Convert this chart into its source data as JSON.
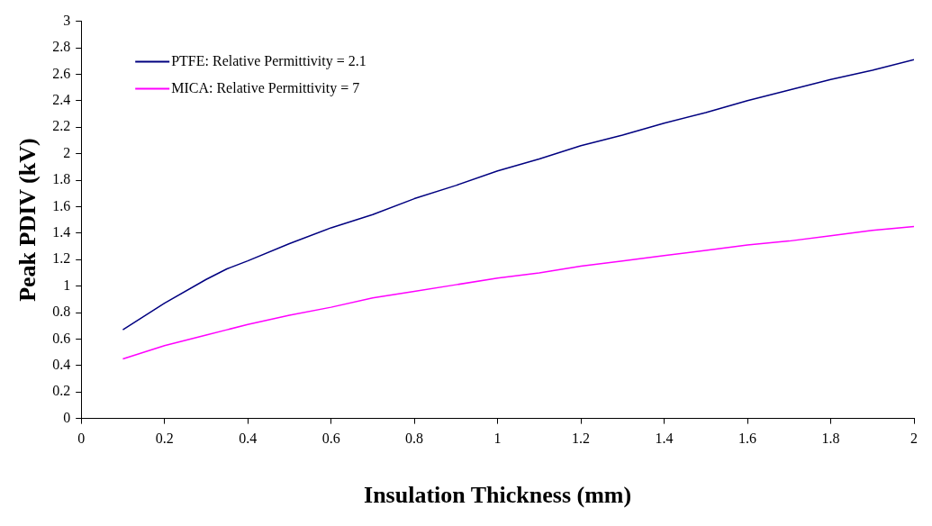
{
  "chart_data": {
    "type": "line",
    "xlabel": "Insulation Thickness (mm)",
    "ylabel": "Peak PDIV (kV)",
    "xlim": [
      0,
      2
    ],
    "xticks": [
      0,
      0.2,
      0.4,
      0.6,
      0.8,
      1,
      1.2,
      1.4,
      1.6,
      1.8,
      2
    ],
    "ylim": [
      0,
      3
    ],
    "yticks": [
      0,
      0.2,
      0.4,
      0.6,
      0.8,
      1,
      1.2,
      1.4,
      1.6,
      1.8,
      2,
      2.2,
      2.4,
      2.6,
      2.8,
      3
    ],
    "x": [
      0.1,
      0.2,
      0.3,
      0.35,
      0.4,
      0.5,
      0.6,
      0.7,
      0.8,
      0.9,
      1.0,
      1.1,
      1.2,
      1.3,
      1.4,
      1.5,
      1.6,
      1.7,
      1.8,
      1.9,
      2.0
    ],
    "series": [
      {
        "name": "PTFE: Relative Permittivity = 2.1",
        "color": "#000080",
        "values": [
          0.67,
          0.87,
          1.05,
          1.13,
          1.19,
          1.32,
          1.44,
          1.54,
          1.66,
          1.76,
          1.87,
          1.96,
          2.06,
          2.14,
          2.23,
          2.31,
          2.4,
          2.48,
          2.56,
          2.63,
          2.71
        ]
      },
      {
        "name": "MICA: Relative Permittivity = 7",
        "color": "#ff00ff",
        "values": [
          0.45,
          0.55,
          0.63,
          0.67,
          0.71,
          0.78,
          0.84,
          0.91,
          0.96,
          1.01,
          1.06,
          1.1,
          1.15,
          1.19,
          1.23,
          1.27,
          1.31,
          1.34,
          1.38,
          1.42,
          1.45
        ]
      }
    ],
    "grid": false,
    "legend": "top left",
    "marker": "none",
    "line_style": "solid"
  }
}
